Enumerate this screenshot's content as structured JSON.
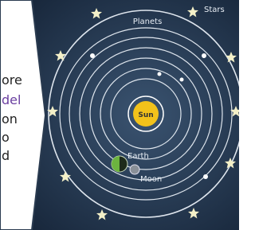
{
  "left_text": {
    "lines": [
      "ore",
      "del",
      "on",
      "o",
      "d"
    ]
  },
  "diagram": {
    "labels": {
      "planets": "Planets",
      "stars": "Stars",
      "sun": "Sun",
      "earth": "Earth",
      "moon": "Moon"
    }
  }
}
